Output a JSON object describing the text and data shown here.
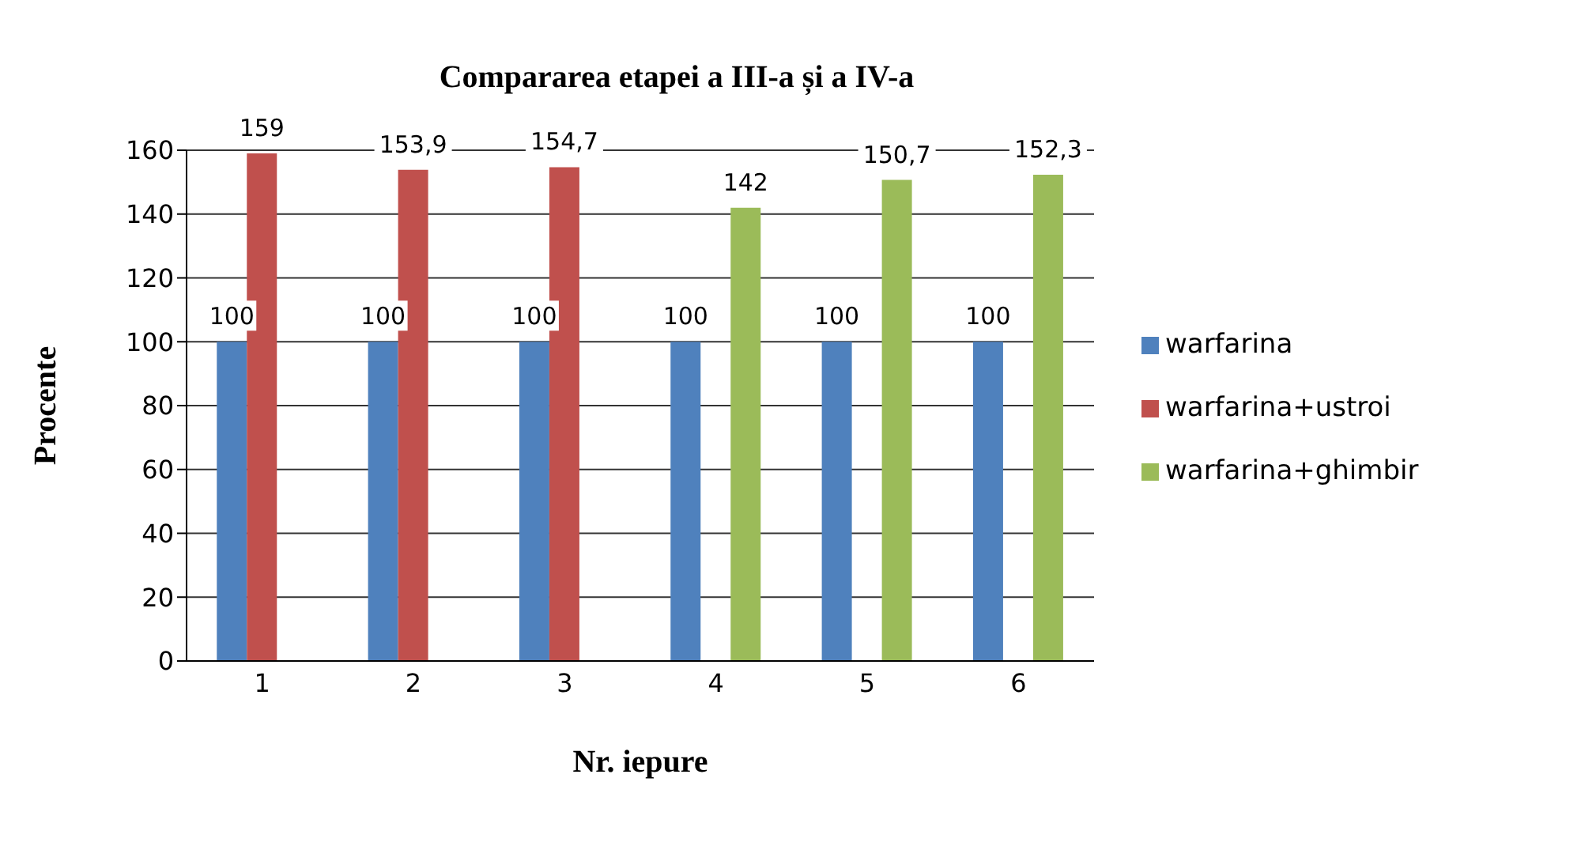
{
  "chart_data": {
    "type": "bar",
    "title": "Compararea etapei a III-a și a IV-a",
    "xlabel": "Nr. iepure",
    "ylabel": "Procente",
    "categories": [
      "1",
      "2",
      "3",
      "4",
      "5",
      "6"
    ],
    "series": [
      {
        "name": "warfarina",
        "color": "#4f81bd",
        "values": [
          100,
          100,
          100,
          100,
          100,
          100
        ],
        "value_labels": [
          "100",
          "100",
          "100",
          "100",
          "100",
          "100"
        ]
      },
      {
        "name": "warfarina+ustroi",
        "color": "#c0504d",
        "values": [
          159,
          153.9,
          154.7,
          null,
          null,
          null
        ],
        "value_labels": [
          "159",
          "153,9",
          "154,7",
          null,
          null,
          null
        ]
      },
      {
        "name": "warfarina+ghimbir",
        "color": "#9bbb59",
        "values": [
          null,
          null,
          null,
          142,
          150.7,
          152.3
        ],
        "value_labels": [
          null,
          null,
          null,
          "142",
          "150,7",
          "152,3"
        ]
      }
    ],
    "ylim": [
      0,
      160
    ],
    "yticks": [
      0,
      20,
      40,
      60,
      80,
      100,
      120,
      140,
      160
    ],
    "grid": "y",
    "legend": "right"
  }
}
